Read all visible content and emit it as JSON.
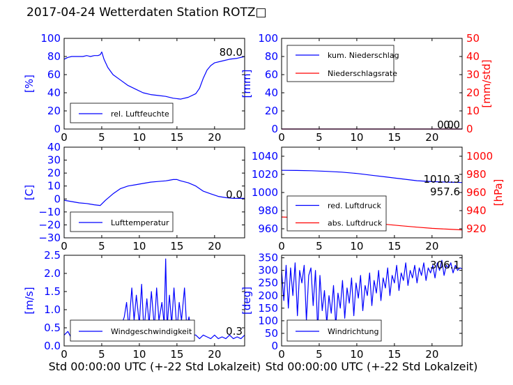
{
  "figure_title": "2017-04-24 Wetterdaten Station ROTZ□",
  "xlabel_common": "Std 00:00:00 UTC (+-22 Std Lokalzeit)",
  "colors": {
    "primary": "#0000ff",
    "secondary": "#ff0000",
    "axis": "#000000"
  },
  "chart_data": [
    {
      "id": "humidity",
      "type": "line",
      "ylabel": "[%]",
      "xlim": [
        0,
        24
      ],
      "ylim": [
        0,
        100
      ],
      "xticks": [
        "0",
        "5",
        "10",
        "15",
        "20"
      ],
      "yticks": [
        "0",
        "20",
        "40",
        "60",
        "80",
        "100"
      ],
      "current_value": "80.0",
      "legend": [
        "rel. Luftfeuchte"
      ],
      "legend_position": "lower-left",
      "series": [
        {
          "name": "rel. Luftfeuchte",
          "color": "#0000ff",
          "x": [
            0,
            0.5,
            1,
            1.5,
            2,
            2.5,
            3,
            3.5,
            4,
            4.5,
            4.8,
            5,
            5.3,
            5.8,
            6.5,
            7.5,
            8.5,
            9.5,
            10.5,
            11.5,
            12.5,
            13.5,
            14.5,
            15.5,
            16.5,
            17.5,
            18,
            18.5,
            19,
            19.5,
            20,
            21,
            22,
            23,
            24
          ],
          "y": [
            77,
            79,
            80,
            80,
            80,
            80,
            81,
            80,
            81,
            81,
            82,
            85,
            77,
            68,
            60,
            54,
            48,
            44,
            40,
            38,
            37,
            36,
            34,
            33,
            35,
            39,
            45,
            56,
            65,
            70,
            73,
            75,
            77,
            78,
            80
          ]
        }
      ]
    },
    {
      "id": "precip",
      "type": "line",
      "ylabel": "[mm]",
      "ylabel_right": "[mm/std]",
      "xlim": [
        0,
        24
      ],
      "ylim": [
        0,
        100
      ],
      "ylim_right": [
        0,
        50
      ],
      "xticks": [
        "0",
        "5",
        "10",
        "15",
        "20"
      ],
      "yticks": [
        "0",
        "20",
        "40",
        "60",
        "80",
        "100"
      ],
      "yticks_right": [
        "0",
        "10",
        "20",
        "30",
        "40",
        "50"
      ],
      "current_value": "0.0",
      "current_value_2": "0.0",
      "legend": [
        "kum. Niederschlag",
        "Niederschlagsrate"
      ],
      "legend_position": "upper-left",
      "series": [
        {
          "name": "kum. Niederschlag",
          "color": "#0000ff",
          "x": [
            0,
            24
          ],
          "y": [
            0,
            0
          ]
        },
        {
          "name": "Niederschlagsrate",
          "color": "#ff0000",
          "x": [
            0,
            24
          ],
          "y": [
            0,
            0
          ]
        }
      ]
    },
    {
      "id": "temperature",
      "type": "line",
      "ylabel": "[C]",
      "xlim": [
        0,
        24
      ],
      "ylim": [
        -30,
        40
      ],
      "xticks": [
        "0",
        "5",
        "10",
        "15",
        "20"
      ],
      "yticks": [
        "−30",
        "−20",
        "−10",
        "0",
        "10",
        "20",
        "30",
        "40"
      ],
      "current_value": "0.0",
      "legend": [
        "Lufttemperatur"
      ],
      "legend_position": "lower-left",
      "series": [
        {
          "name": "Lufttemperatur",
          "color": "#0000ff",
          "x": [
            0,
            1,
            2,
            3,
            4,
            4.8,
            5.5,
            6.5,
            7.5,
            8.5,
            9.5,
            10.5,
            11.5,
            12.5,
            13.5,
            14,
            14.5,
            15,
            15.5,
            16.5,
            17.5,
            18.5,
            19.5,
            20.5,
            21.5,
            22.5,
            23.5,
            24
          ],
          "y": [
            -1,
            -2,
            -3,
            -3.5,
            -4.5,
            -5,
            -1,
            4,
            8,
            10,
            11,
            12,
            13,
            13.5,
            14,
            14.5,
            15,
            15,
            14,
            12.5,
            10,
            6,
            4,
            2,
            1,
            0.5,
            0.5,
            0.5
          ]
        }
      ]
    },
    {
      "id": "pressure",
      "type": "line",
      "ylabel": "[hPa]",
      "xlim": [
        0,
        24
      ],
      "ylim": [
        950,
        1050
      ],
      "ylim_right": [
        910,
        1010
      ],
      "xticks": [
        "0",
        "5",
        "10",
        "15",
        "20"
      ],
      "yticks": [
        "960",
        "980",
        "1000",
        "1020",
        "1040"
      ],
      "yticks_right": [
        "920",
        "940",
        "960",
        "980",
        "1000"
      ],
      "current_value": "1010.3",
      "current_value_2": "957.6",
      "legend": [
        "red. Luftdruck",
        "abs. Luftdruck"
      ],
      "legend_position": "lower-left",
      "series": [
        {
          "name": "red. Luftdruck",
          "color": "#0000ff",
          "x": [
            0,
            2,
            4,
            6,
            8,
            10,
            12,
            14,
            16,
            18,
            20,
            22,
            24
          ],
          "y": [
            1024.5,
            1024.3,
            1024,
            1023.3,
            1022.5,
            1021,
            1019,
            1017,
            1015,
            1013,
            1012,
            1011.5,
            1011
          ]
        },
        {
          "name": "abs. Luftdruck",
          "color": "#ff0000",
          "x": [
            0,
            2,
            4,
            6,
            8,
            10,
            12,
            14,
            16,
            18,
            20,
            22,
            24
          ],
          "y": [
            973,
            972.5,
            972,
            971.3,
            970.3,
            968.5,
            966.5,
            964.8,
            963.2,
            961.8,
            960.5,
            959.6,
            958.8
          ]
        }
      ]
    },
    {
      "id": "wind_speed",
      "type": "line",
      "ylabel": "[m/s]",
      "xlim": [
        0,
        24
      ],
      "ylim": [
        0,
        2.5
      ],
      "xticks": [
        "0",
        "5",
        "10",
        "15",
        "20"
      ],
      "yticks": [
        "0.0",
        "0.5",
        "1.0",
        "1.5",
        "2.0",
        "2.5"
      ],
      "current_value": "0.3",
      "legend": [
        "Windgeschwindigkeit"
      ],
      "legend_position": "lower-left",
      "series": [
        {
          "name": "Windgeschwindigkeit",
          "color": "#0000ff",
          "x": [
            0,
            0.5,
            1,
            1.5,
            2,
            2.5,
            3,
            3.5,
            4,
            4.5,
            5,
            5.5,
            6,
            6.5,
            7,
            7.5,
            8,
            8.3,
            8.6,
            9,
            9.3,
            9.6,
            10,
            10.3,
            10.6,
            11,
            11.3,
            11.6,
            12,
            12.3,
            12.6,
            13,
            13.3,
            13.5,
            13.7,
            14,
            14.3,
            14.6,
            15,
            15.3,
            15.6,
            16,
            16.3,
            16.6,
            17,
            17.5,
            18,
            18.5,
            19,
            19.5,
            20,
            20.5,
            21,
            21.5,
            22,
            22.5,
            23,
            23.5,
            24
          ],
          "y": [
            0.3,
            0.4,
            0.2,
            0.5,
            0.3,
            0.4,
            0.2,
            0.3,
            0.25,
            0.3,
            0.35,
            0.5,
            0.3,
            0.4,
            0.6,
            0.5,
            0.8,
            1.2,
            0.5,
            1.6,
            0.7,
            1.4,
            0.6,
            1.7,
            0.4,
            1.3,
            0.6,
            1.5,
            0.5,
            1.6,
            0.7,
            1.2,
            0.6,
            2.4,
            0.5,
            1.4,
            0.6,
            1.6,
            0.4,
            1.2,
            0.7,
            1.6,
            0.5,
            0.8,
            0.3,
            0.3,
            0.2,
            0.3,
            0.25,
            0.2,
            0.3,
            0.2,
            0.25,
            0.2,
            0.3,
            0.2,
            0.25,
            0.2,
            0.3
          ]
        }
      ]
    },
    {
      "id": "wind_direction",
      "type": "line",
      "ylabel": "[deg]",
      "xlim": [
        0,
        24
      ],
      "ylim": [
        0,
        360
      ],
      "xticks": [
        "0",
        "5",
        "10",
        "15",
        "20"
      ],
      "yticks": [
        "0",
        "50",
        "100",
        "150",
        "200",
        "250",
        "300",
        "350"
      ],
      "current_value": "306.1",
      "legend": [
        "Windrichtung"
      ],
      "legend_position": "lower-left",
      "series": [
        {
          "name": "Windrichtung",
          "color": "#0000ff",
          "x": [
            0,
            0.3,
            0.6,
            0.9,
            1.2,
            1.5,
            1.8,
            2.1,
            2.4,
            2.7,
            3,
            3.3,
            3.6,
            3.9,
            4.2,
            4.5,
            4.8,
            5.1,
            5.4,
            5.7,
            6,
            6.3,
            6.6,
            6.9,
            7.2,
            7.5,
            7.8,
            8.1,
            8.4,
            8.7,
            9,
            9.3,
            9.6,
            9.9,
            10.2,
            10.5,
            10.8,
            11.1,
            11.4,
            11.7,
            12,
            12.3,
            12.6,
            12.9,
            13.2,
            13.5,
            13.8,
            14.1,
            14.4,
            14.7,
            15,
            15.3,
            15.6,
            15.9,
            16.2,
            16.5,
            16.8,
            17.1,
            17.4,
            17.7,
            18,
            18.3,
            18.6,
            18.9,
            19.2,
            19.5,
            19.8,
            20.1,
            20.4,
            20.7,
            21,
            21.3,
            21.6,
            21.9,
            22.2,
            22.5,
            22.8,
            23.1,
            23.4,
            23.7,
            24
          ],
          "y": [
            300,
            180,
            320,
            150,
            310,
            200,
            330,
            120,
            300,
            250,
            320,
            100,
            280,
            310,
            160,
            300,
            60,
            280,
            140,
            220,
            90,
            200,
            130,
            240,
            80,
            210,
            150,
            260,
            110,
            230,
            170,
            270,
            120,
            250,
            190,
            280,
            140,
            240,
            200,
            290,
            160,
            260,
            210,
            300,
            180,
            270,
            230,
            310,
            200,
            280,
            250,
            320,
            220,
            290,
            260,
            330,
            240,
            300,
            270,
            320,
            250,
            310,
            280,
            330,
            260,
            310,
            290,
            320,
            270,
            330,
            300,
            340,
            280,
            320,
            310,
            330,
            290,
            320,
            300,
            310,
            306
          ]
        }
      ]
    }
  ]
}
